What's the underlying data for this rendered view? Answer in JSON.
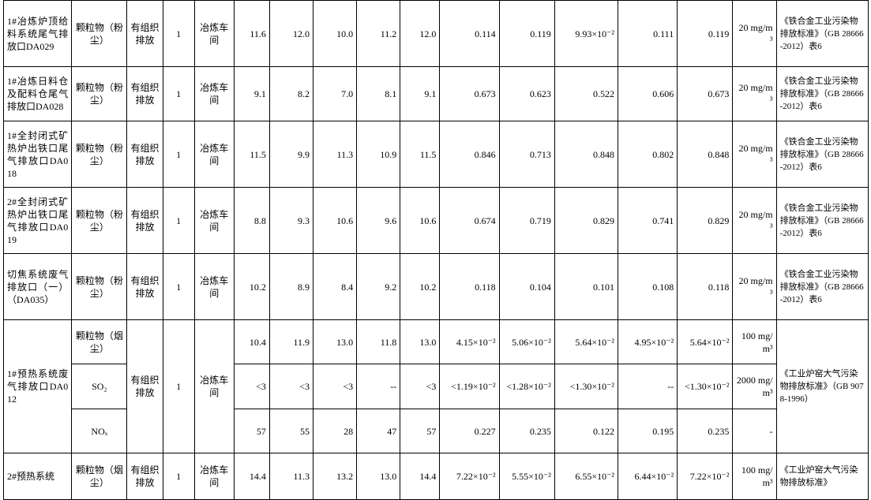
{
  "table": {
    "rows": [
      {
        "source": "1#冶炼炉顶给料系统尾气排放口DA029",
        "type": "有组织排放",
        "count": "1",
        "workshop": "冶炼车间",
        "standard": "《铁合金工业污染物排放标准》（GB 28666-2012）表6",
        "items": [
          {
            "pollutant": "颗粒物（粉尘）",
            "conc": [
              "11.6",
              "12.0",
              "10.0",
              "11.2",
              "12.0"
            ],
            "rate": [
              "0.114",
              "0.119",
              "9.93×10⁻²",
              "0.111",
              "0.119"
            ],
            "limit": "20 mg/m³"
          }
        ]
      },
      {
        "source": "1#冶炼日料仓及配料仓尾气排放口DA028",
        "type": "有组织排放",
        "count": "1",
        "workshop": "冶炼车间",
        "standard": "《铁合金工业污染物排放标准》（GB 28666-2012）表6",
        "items": [
          {
            "pollutant": "颗粒物（粉尘）",
            "conc": [
              "9.1",
              "8.2",
              "7.0",
              "8.1",
              "9.1"
            ],
            "rate": [
              "0.673",
              "0.623",
              "0.522",
              "0.606",
              "0.673"
            ],
            "limit": "20 mg/m³"
          }
        ]
      },
      {
        "source": "1#全封闭式矿热炉出铁口尾气排放口DA018",
        "type": "有组织排放",
        "count": "1",
        "workshop": "冶炼车间",
        "standard": "《铁合金工业污染物排放标准》（GB 28666-2012）表6",
        "items": [
          {
            "pollutant": "颗粒物（粉尘）",
            "conc": [
              "11.5",
              "9.9",
              "11.3",
              "10.9",
              "11.5"
            ],
            "rate": [
              "0.846",
              "0.713",
              "0.848",
              "0.802",
              "0.848"
            ],
            "limit": "20 mg/m³"
          }
        ]
      },
      {
        "source": "2#全封闭式矿热炉出铁口尾气排放口DA019",
        "type": "有组织排放",
        "count": "1",
        "workshop": "冶炼车间",
        "standard": "《铁合金工业污染物排放标准》（GB 28666-2012）表6",
        "items": [
          {
            "pollutant": "颗粒物（粉尘）",
            "conc": [
              "8.8",
              "9.3",
              "10.6",
              "9.6",
              "10.6"
            ],
            "rate": [
              "0.674",
              "0.719",
              "0.829",
              "0.741",
              "0.829"
            ],
            "limit": "20 mg/m³"
          }
        ]
      },
      {
        "source": "切焦系统废气排放口（一）（DA035）",
        "type": "有组织排放",
        "count": "1",
        "workshop": "冶炼车间",
        "standard": "《铁合金工业污染物排放标准》（GB 28666-2012）表6",
        "items": [
          {
            "pollutant": "颗粒物（粉尘）",
            "conc": [
              "10.2",
              "8.9",
              "8.4",
              "9.2",
              "10.2"
            ],
            "rate": [
              "0.118",
              "0.104",
              "0.101",
              "0.108",
              "0.118"
            ],
            "limit": "20 mg/m³"
          }
        ]
      },
      {
        "source": "1#预热系统废气排放口DA012",
        "type": "有组织排放",
        "count": "1",
        "workshop": "冶炼车间",
        "standard": "《工业炉窑大气污染物排放标准》（GB 9078-1996）",
        "items": [
          {
            "pollutant": "颗粒物（烟尘）",
            "conc": [
              "10.4",
              "11.9",
              "13.0",
              "11.8",
              "13.0"
            ],
            "rate": [
              "4.15×10⁻²",
              "5.06×10⁻²",
              "5.64×10⁻²",
              "4.95×10⁻²",
              "5.64×10⁻²"
            ],
            "limit": "100 mg/m³"
          },
          {
            "pollutant": "SO₂",
            "conc": [
              "<3",
              "<3",
              "<3",
              "--",
              "<3"
            ],
            "rate": [
              "<1.19×10⁻²",
              "<1.28×10⁻²",
              "<1.30×10⁻²",
              "--",
              "<1.30×10⁻²"
            ],
            "limit": "2000 mg/m³"
          },
          {
            "pollutant": "NOₓ",
            "conc": [
              "57",
              "55",
              "28",
              "47",
              "57"
            ],
            "rate": [
              "0.227",
              "0.235",
              "0.122",
              "0.195",
              "0.235"
            ],
            "limit": "-"
          }
        ]
      },
      {
        "source": "2#预热系统",
        "type": "有组织排放",
        "count": "1",
        "workshop": "冶炼车间",
        "standard": "《工业炉窑大气污染物排放标准》",
        "items": [
          {
            "pollutant": "颗粒物（烟尘）",
            "conc": [
              "14.4",
              "11.3",
              "13.2",
              "13.0",
              "14.4"
            ],
            "rate": [
              "7.22×10⁻²",
              "5.55×10⁻²",
              "6.55×10⁻²",
              "6.44×10⁻²",
              "7.22×10⁻²"
            ],
            "limit": "100 mg/m³"
          }
        ]
      }
    ]
  }
}
